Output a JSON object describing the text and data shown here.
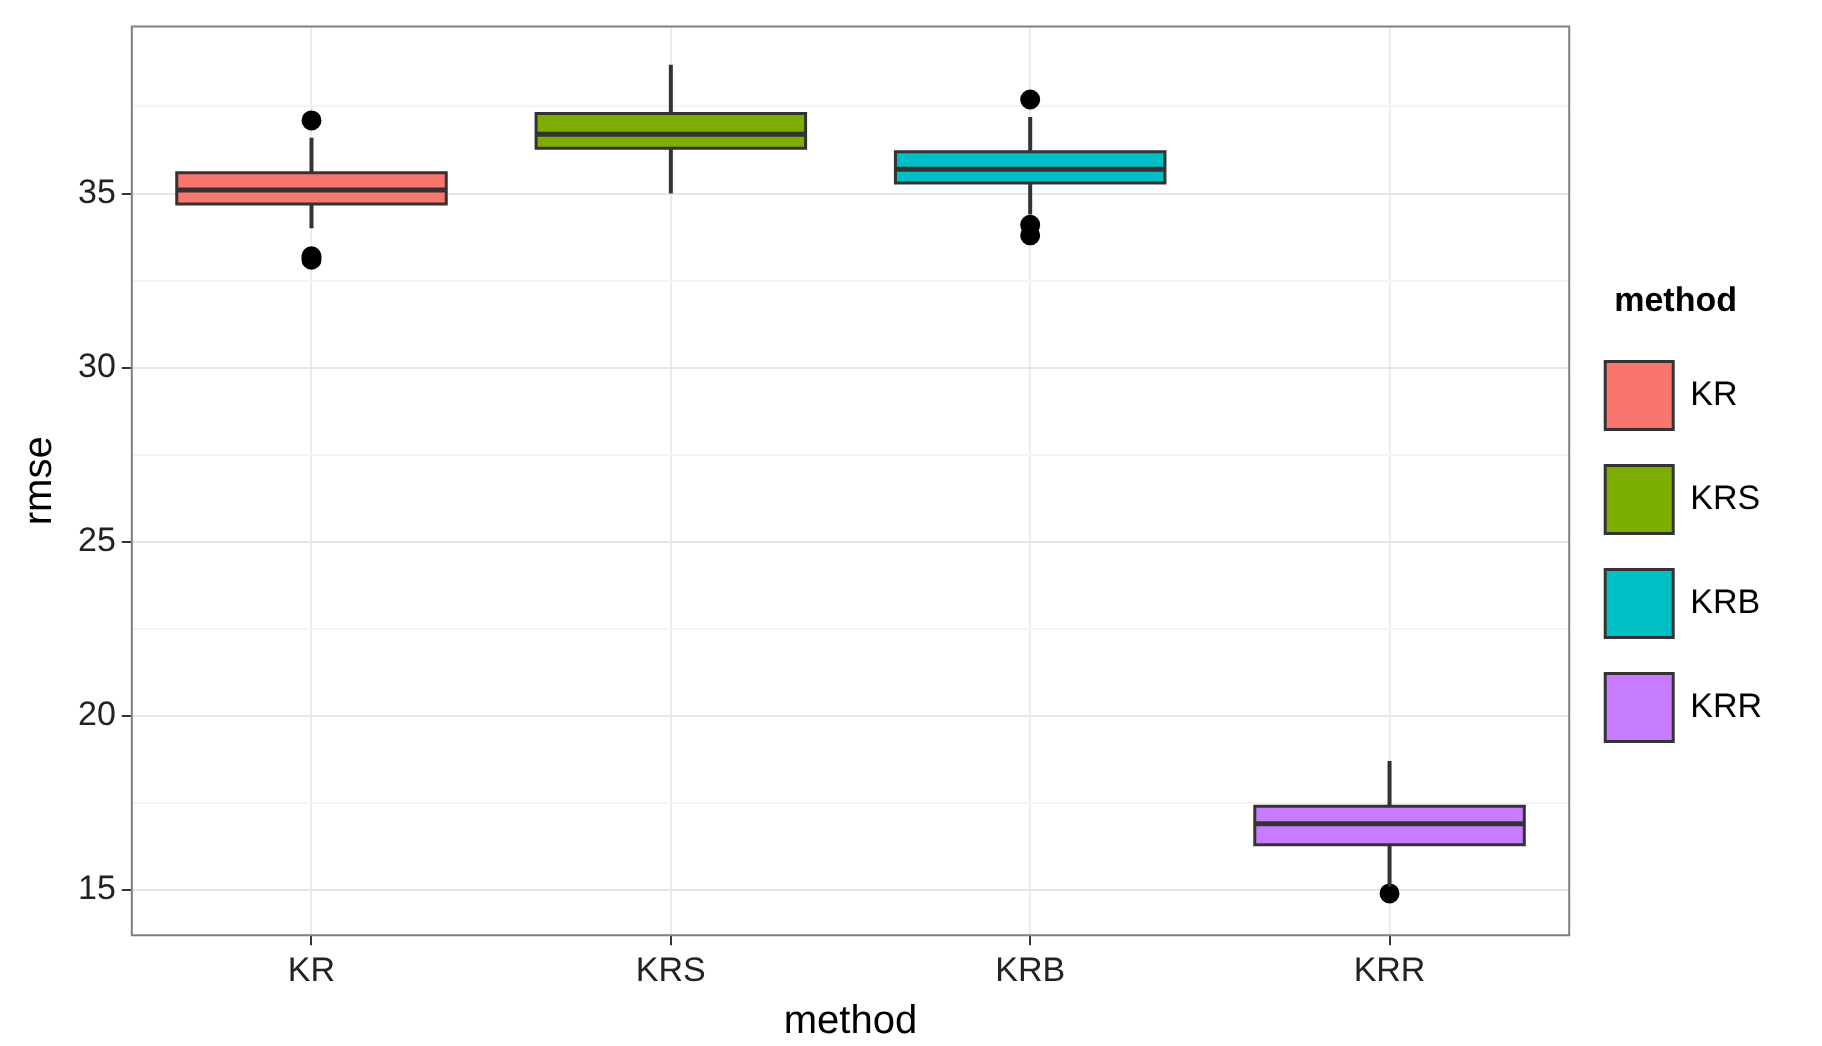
{
  "chart_data": {
    "type": "box",
    "xlabel": "method",
    "ylabel": "rmse",
    "legend_title": "method",
    "legend": "right",
    "grid": true,
    "categories": [
      "KR",
      "KRS",
      "KRB",
      "KRR"
    ],
    "series": [
      {
        "name": "KR",
        "color": "#f8766d",
        "boxes": [
          {
            "low": 34.0,
            "q1": 34.7,
            "median": 35.1,
            "q3": 35.6,
            "high": 36.6,
            "outliers": [
              37.1,
              33.2,
              33.1
            ]
          },
          null,
          null,
          null
        ]
      },
      {
        "name": "KRS",
        "color": "#7cae00",
        "boxes": [
          null,
          {
            "low": 35.0,
            "q1": 36.3,
            "median": 36.7,
            "q3": 37.3,
            "high": 38.7
          },
          null,
          null
        ]
      },
      {
        "name": "KRB",
        "color": "#00bfc4",
        "boxes": [
          null,
          null,
          {
            "low": 34.4,
            "q1": 35.3,
            "median": 35.7,
            "q3": 36.2,
            "high": 37.2,
            "outliers": [
              37.7,
              34.1,
              33.8
            ]
          },
          null
        ]
      },
      {
        "name": "KRR",
        "color": "#c77cff",
        "boxes": [
          null,
          null,
          null,
          {
            "low": 15.1,
            "q1": 16.3,
            "median": 16.9,
            "q3": 17.4,
            "high": 18.7,
            "outliers": [
              14.9
            ]
          }
        ]
      }
    ],
    "ylim": [
      13.7,
      39.8
    ],
    "yticks": [
      15,
      {
        "value": 17.5,
        "label": null
      },
      20,
      {
        "value": 22.5,
        "label": null
      },
      25,
      {
        "value": 27.5,
        "label": null
      },
      30,
      {
        "value": 32.5,
        "label": null
      },
      35,
      {
        "value": 37.5,
        "label": null
      }
    ]
  }
}
